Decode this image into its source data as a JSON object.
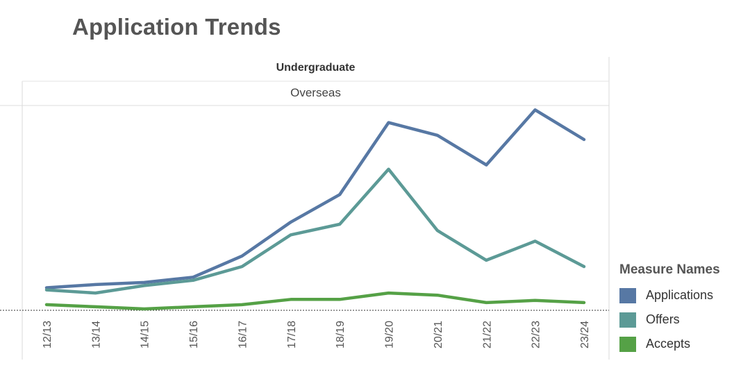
{
  "title": "Application Trends",
  "chart_data": {
    "type": "line",
    "title": "Application Trends",
    "column_header": "Undergraduate",
    "panel_header": "Overseas",
    "xlabel": "",
    "ylabel": "",
    "categories": [
      "12/13",
      "13/14",
      "14/15",
      "15/16",
      "16/17",
      "17/18",
      "18/19",
      "19/20",
      "20/21",
      "21/22",
      "22/23",
      "23/24"
    ],
    "ylim": [
      0,
      100
    ],
    "grid": false,
    "legend_position": "right",
    "legend_title": "Measure Names",
    "series": [
      {
        "name": "Applications",
        "color": "#5778a4",
        "values": [
          10,
          11.5,
          12.5,
          15,
          25,
          41,
          54,
          88,
          82,
          68,
          94,
          80
        ]
      },
      {
        "name": "Offers",
        "color": "#5c9a96",
        "values": [
          9,
          7.5,
          11,
          13.5,
          20,
          35,
          40,
          66,
          37,
          23,
          32,
          20
        ]
      },
      {
        "name": "Accepts",
        "color": "#55a146",
        "values": [
          2,
          1,
          0,
          1,
          2,
          4.5,
          4.5,
          7.5,
          6.5,
          3,
          4,
          3
        ]
      }
    ]
  }
}
